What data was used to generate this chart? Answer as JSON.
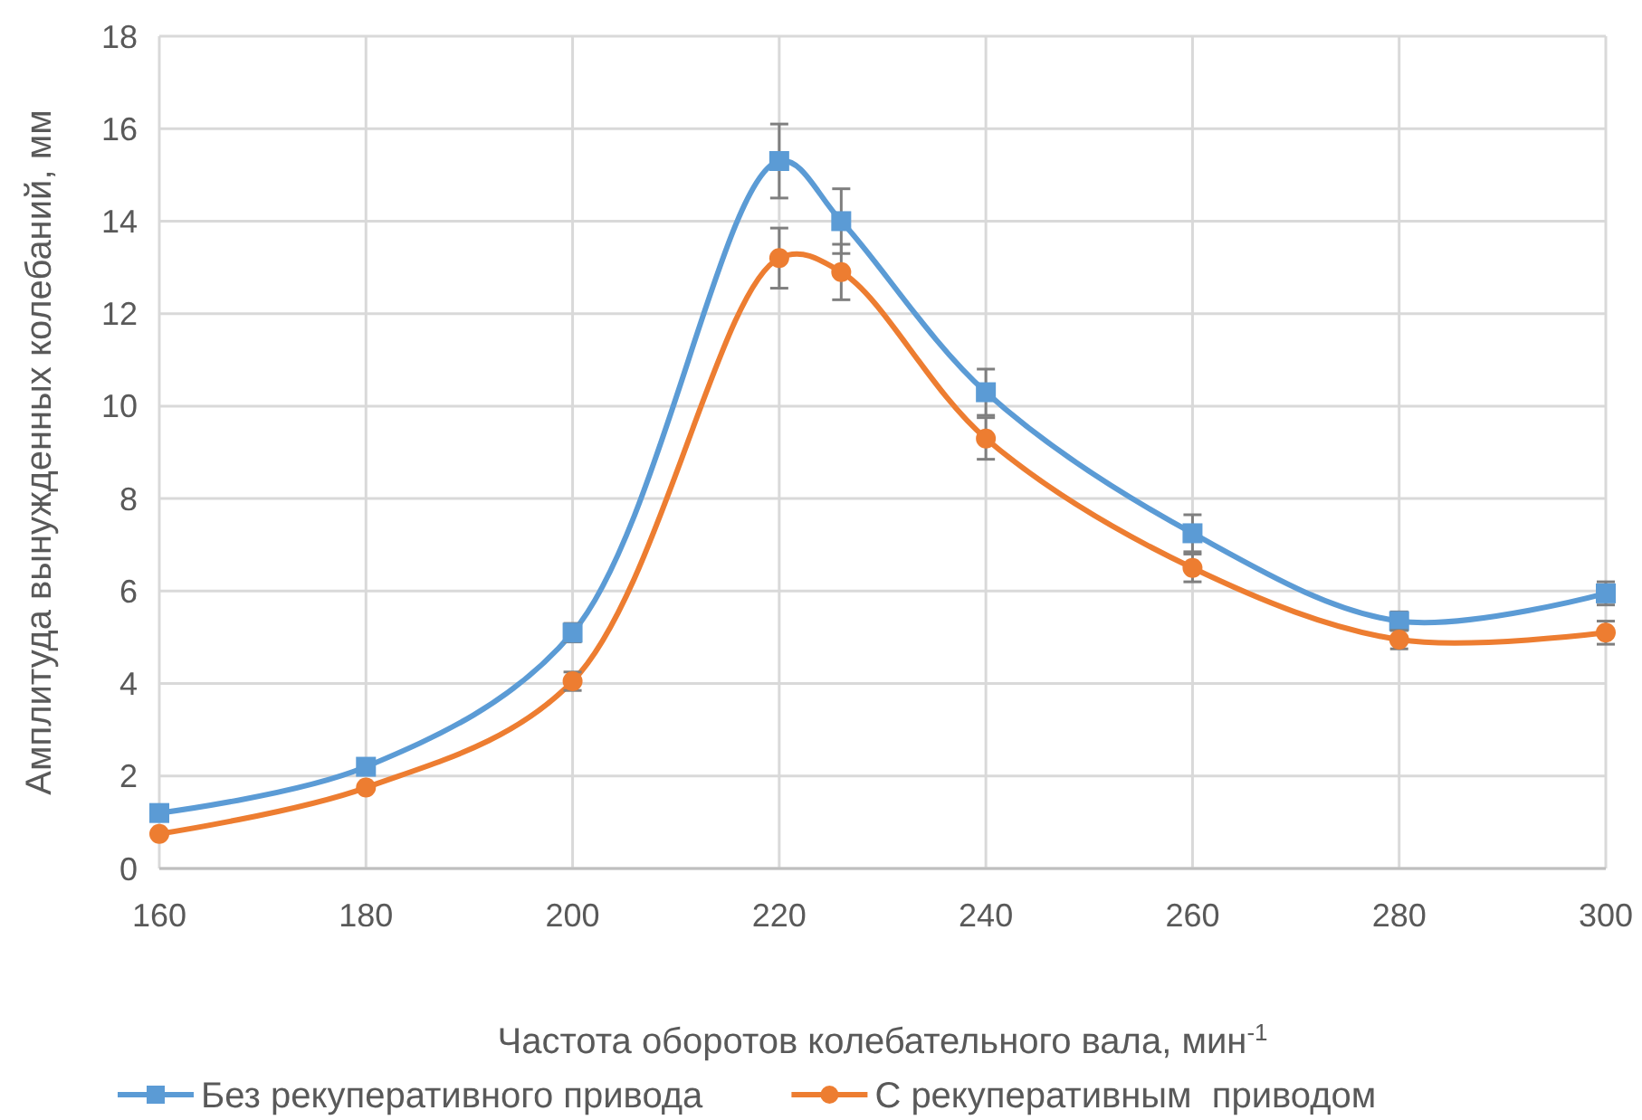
{
  "chart_data": {
    "type": "line",
    "xlabel": "Частота оборотов колебательного вала, мин$^{-1}$",
    "ylabel": "Амплитуда вынужденных колебаний, мм",
    "x": [
      160,
      180,
      200,
      220,
      226,
      240,
      260,
      280,
      300
    ],
    "xlim": [
      160,
      300
    ],
    "xticks": [
      160,
      180,
      200,
      220,
      240,
      260,
      280,
      300
    ],
    "ylim": [
      0,
      18
    ],
    "yticks": [
      0,
      2,
      4,
      6,
      8,
      10,
      12,
      14,
      16,
      18
    ],
    "grid": true,
    "legend": "bottom",
    "line_style": "solid",
    "series": [
      {
        "name": "Без рекуперативного привода",
        "color": "#5b9bd5",
        "marker": "square",
        "values": [
          1.2,
          2.2,
          5.1,
          15.3,
          14.0,
          10.3,
          7.25,
          5.35,
          5.95
        ],
        "errors": [
          null,
          null,
          0.2,
          0.8,
          0.7,
          0.5,
          0.4,
          0.2,
          0.25
        ]
      },
      {
        "name": "С рекуперативным  приводом",
        "color": "#ed7d31",
        "marker": "circle",
        "values": [
          0.75,
          1.75,
          4.05,
          13.2,
          12.9,
          9.3,
          6.5,
          4.95,
          5.1
        ],
        "errors": [
          null,
          null,
          0.2,
          0.65,
          0.6,
          0.45,
          0.3,
          0.2,
          0.25
        ]
      }
    ]
  }
}
